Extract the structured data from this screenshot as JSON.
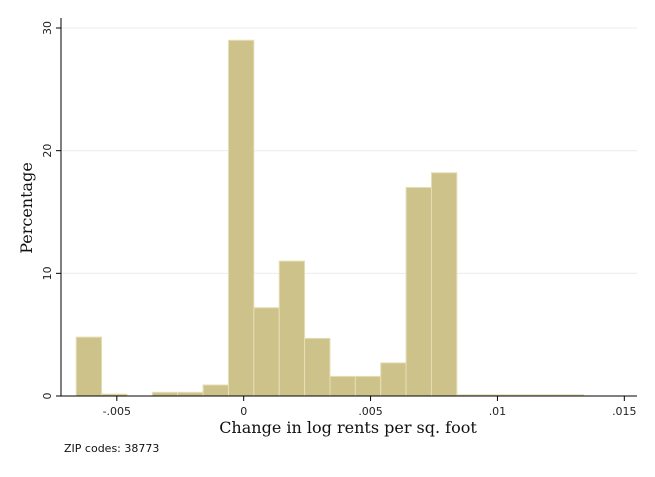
{
  "chart_data": {
    "type": "bar",
    "subtype": "histogram",
    "xlabel": "Change in log rents per sq. foot",
    "ylabel": "Percentage",
    "xlim": [
      -0.0072,
      0.0155
    ],
    "ylim": [
      0,
      30
    ],
    "x_ticks": [
      {
        "value": -0.005,
        "label": "-.005"
      },
      {
        "value": 0,
        "label": "0"
      },
      {
        "value": 0.005,
        "label": ".005"
      },
      {
        "value": 0.01,
        "label": ".01"
      },
      {
        "value": 0.015,
        "label": ".015"
      }
    ],
    "y_ticks": [
      {
        "value": 0,
        "label": "0"
      },
      {
        "value": 10,
        "label": "10"
      },
      {
        "value": 20,
        "label": "20"
      },
      {
        "value": 30,
        "label": "30"
      }
    ],
    "bin_width": 0.001,
    "bin_starts": [
      -0.0066,
      -0.0056,
      -0.0046,
      -0.0036,
      -0.0026,
      -0.0016,
      -0.0006,
      0.0004,
      0.0014,
      0.0024,
      0.0034,
      0.0044,
      0.0054,
      0.0064,
      0.0074,
      0.0084,
      0.0094,
      0.0104,
      0.0114,
      0.0124
    ],
    "values": [
      4.8,
      0.15,
      0,
      0.3,
      0.3,
      0.9,
      29.0,
      7.2,
      11.0,
      4.7,
      1.6,
      1.6,
      2.7,
      17.0,
      18.2,
      0.1,
      0.1,
      0.1,
      0.1,
      0.1
    ],
    "bar_color": "#cdc28a",
    "grid": "horizontal",
    "legend": "none"
  },
  "note": "ZIP codes: 38773"
}
